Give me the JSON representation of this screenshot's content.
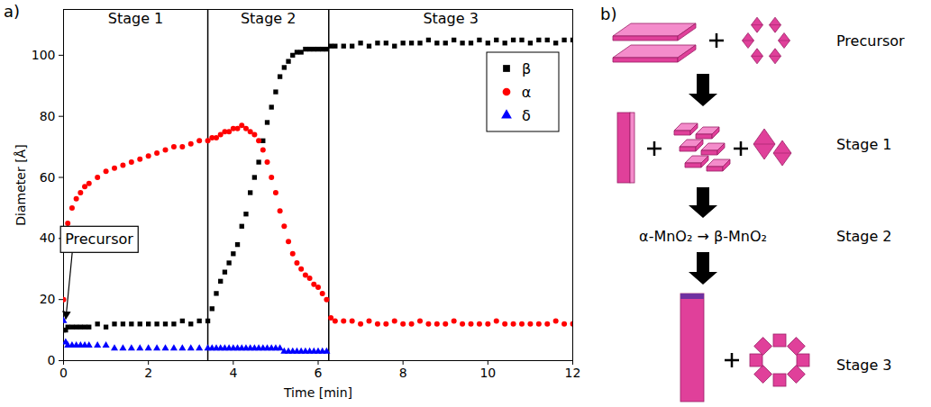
{
  "chart_data": {
    "type": "scatter",
    "panel": "a)",
    "x_label": "Time [min]",
    "y_label": "Diameter [Å]",
    "xlim": [
      0,
      12
    ],
    "xticks": [
      0,
      2,
      4,
      6,
      8,
      10,
      12
    ],
    "ylim": [
      0,
      115
    ],
    "yticks": [
      0,
      20,
      40,
      60,
      80,
      100
    ],
    "grid": false,
    "legend": "top-right",
    "stage_boundaries": [
      3.4,
      6.25
    ],
    "stages": [
      "Stage 1",
      "Stage 2",
      "Stage 3"
    ],
    "annotations": [
      {
        "text": "Precursor",
        "x": 0,
        "y": 12
      }
    ],
    "x": [
      0,
      0.05,
      0.1,
      0.2,
      0.3,
      0.4,
      0.5,
      0.6,
      0.8,
      1.0,
      1.2,
      1.4,
      1.6,
      1.8,
      2.0,
      2.2,
      2.4,
      2.6,
      2.8,
      3.0,
      3.2,
      3.4,
      3.5,
      3.6,
      3.7,
      3.8,
      3.9,
      4.0,
      4.1,
      4.2,
      4.3,
      4.4,
      4.5,
      4.6,
      4.7,
      4.8,
      4.9,
      5.0,
      5.1,
      5.2,
      5.3,
      5.4,
      5.5,
      5.6,
      5.7,
      5.8,
      5.9,
      6.0,
      6.1,
      6.2,
      6.3,
      6.4,
      6.6,
      6.8,
      7.0,
      7.2,
      7.4,
      7.6,
      7.8,
      8.0,
      8.2,
      8.4,
      8.6,
      8.8,
      9.0,
      9.2,
      9.4,
      9.6,
      9.8,
      10.0,
      10.2,
      10.4,
      10.6,
      10.8,
      11.0,
      11.2,
      11.4,
      11.6,
      11.8,
      12.0
    ],
    "series": [
      {
        "name": "β",
        "color": "#000000",
        "marker": "square",
        "values": [
          10,
          10,
          11,
          11,
          11,
          11,
          11,
          11,
          12,
          11,
          12,
          12,
          12,
          12,
          12,
          12,
          12,
          12,
          13,
          12,
          13,
          13,
          17,
          22,
          26,
          29,
          32,
          35,
          38,
          44,
          48,
          55,
          60,
          65,
          72,
          78,
          83,
          88,
          93,
          96,
          98,
          100,
          101,
          101,
          102,
          102,
          102,
          102,
          102,
          102,
          103,
          103,
          103,
          103,
          104,
          103,
          104,
          104,
          103,
          104,
          104,
          104,
          105,
          104,
          104,
          105,
          104,
          104,
          105,
          104,
          105,
          104,
          105,
          105,
          104,
          105,
          105,
          104,
          105,
          105
        ]
      },
      {
        "name": "α",
        "color": "#ff0000",
        "marker": "circle",
        "values": [
          20,
          38,
          45,
          50,
          53,
          55,
          57,
          58,
          60,
          62,
          63,
          64,
          65,
          66,
          67,
          68,
          69,
          70,
          70,
          71,
          72,
          72,
          73,
          73,
          74,
          75,
          75,
          76,
          76,
          77,
          76,
          75,
          74,
          72,
          69,
          65,
          60,
          55,
          49,
          44,
          39,
          35,
          32,
          30,
          28,
          27,
          25,
          24,
          22,
          20,
          14,
          13,
          13,
          13,
          12,
          13,
          12,
          12,
          13,
          12,
          12,
          13,
          12,
          12,
          12,
          13,
          12,
          12,
          12,
          12,
          13,
          12,
          12,
          12,
          12,
          12,
          12,
          13,
          12,
          12
        ]
      },
      {
        "name": "δ",
        "color": "#0000ff",
        "marker": "triangle",
        "values": [
          13,
          6,
          5,
          5,
          5,
          5,
          5,
          5,
          5,
          5,
          4,
          4,
          4,
          4,
          4,
          4,
          4,
          4,
          4,
          4,
          4,
          4,
          4,
          4,
          4,
          4,
          4,
          4,
          4,
          4,
          4,
          4,
          4,
          4,
          4,
          4,
          4,
          4,
          4,
          3,
          3,
          3,
          3,
          3,
          3,
          3,
          3,
          3,
          3,
          3,
          null,
          null,
          null,
          null,
          null,
          null,
          null,
          null,
          null,
          null,
          null,
          null,
          null,
          null,
          null,
          null,
          null,
          null,
          null,
          null,
          null,
          null,
          null,
          null,
          null,
          null,
          null,
          null,
          null,
          null
        ]
      }
    ]
  },
  "diagram": {
    "panel": "b)",
    "steps": [
      "Precursor",
      "Stage 1",
      "Stage 2",
      "Stage 3"
    ],
    "transition": "α-MnO₂ → β-MnO₂"
  }
}
